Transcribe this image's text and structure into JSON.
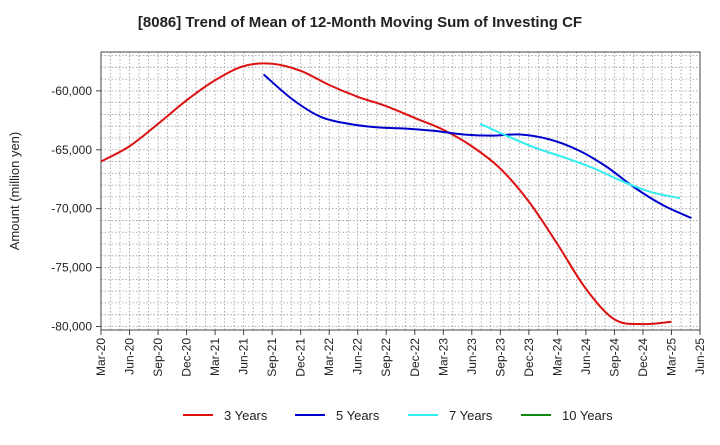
{
  "chart_data": {
    "type": "line",
    "title": "[8086]  Trend of Mean of 12-Month Moving Sum of Investing CF",
    "xlabel": "",
    "ylabel": "Amount (million yen)",
    "ylim": [
      -80300,
      -56700
    ],
    "y_ticks": [
      -60000,
      -65000,
      -70000,
      -75000,
      -80000
    ],
    "y_tick_labels": [
      "-60,000",
      "-65,000",
      "-70,000",
      "-75,000",
      "-80,000"
    ],
    "x_tick_labels": [
      "Mar-20",
      "Jun-20",
      "Sep-20",
      "Dec-20",
      "Mar-21",
      "Jun-21",
      "Sep-21",
      "Dec-21",
      "Mar-22",
      "Jun-22",
      "Sep-22",
      "Dec-22",
      "Mar-23",
      "Jun-23",
      "Sep-23",
      "Dec-23",
      "Mar-24",
      "Jun-24",
      "Sep-24",
      "Dec-24",
      "Mar-25",
      "Jun-25"
    ],
    "grid": true,
    "legend_position": "bottom",
    "series": [
      {
        "name": "3 Years",
        "color": "#dd1111",
        "start_index": 0,
        "values": [
          -66000,
          -64700,
          -62800,
          -60800,
          -59100,
          -57900,
          -57700,
          -58300,
          -59500,
          -60500,
          -61300,
          -62300,
          -63300,
          -64700,
          -66600,
          -69400,
          -73000,
          -76800,
          -79400,
          -79800,
          -79600
        ]
      },
      {
        "name": "5 Years",
        "color": "#0000cc",
        "start_index": 5.7,
        "values": [
          -58600,
          -60700,
          -62200,
          -62800,
          -63100,
          -63200,
          -63400,
          -63700,
          -63800,
          -63700,
          -64100,
          -65000,
          -66400,
          -68200,
          -69700,
          -70800
        ]
      },
      {
        "name": "7 Years",
        "color": "#33eeee",
        "start_index": 13.3,
        "values": [
          -62800,
          -63900,
          -64900,
          -65700,
          -66600,
          -67700,
          -68600,
          -69100
        ]
      },
      {
        "name": "10 Years",
        "color": "#118811",
        "start_index": 0,
        "values": []
      }
    ]
  }
}
